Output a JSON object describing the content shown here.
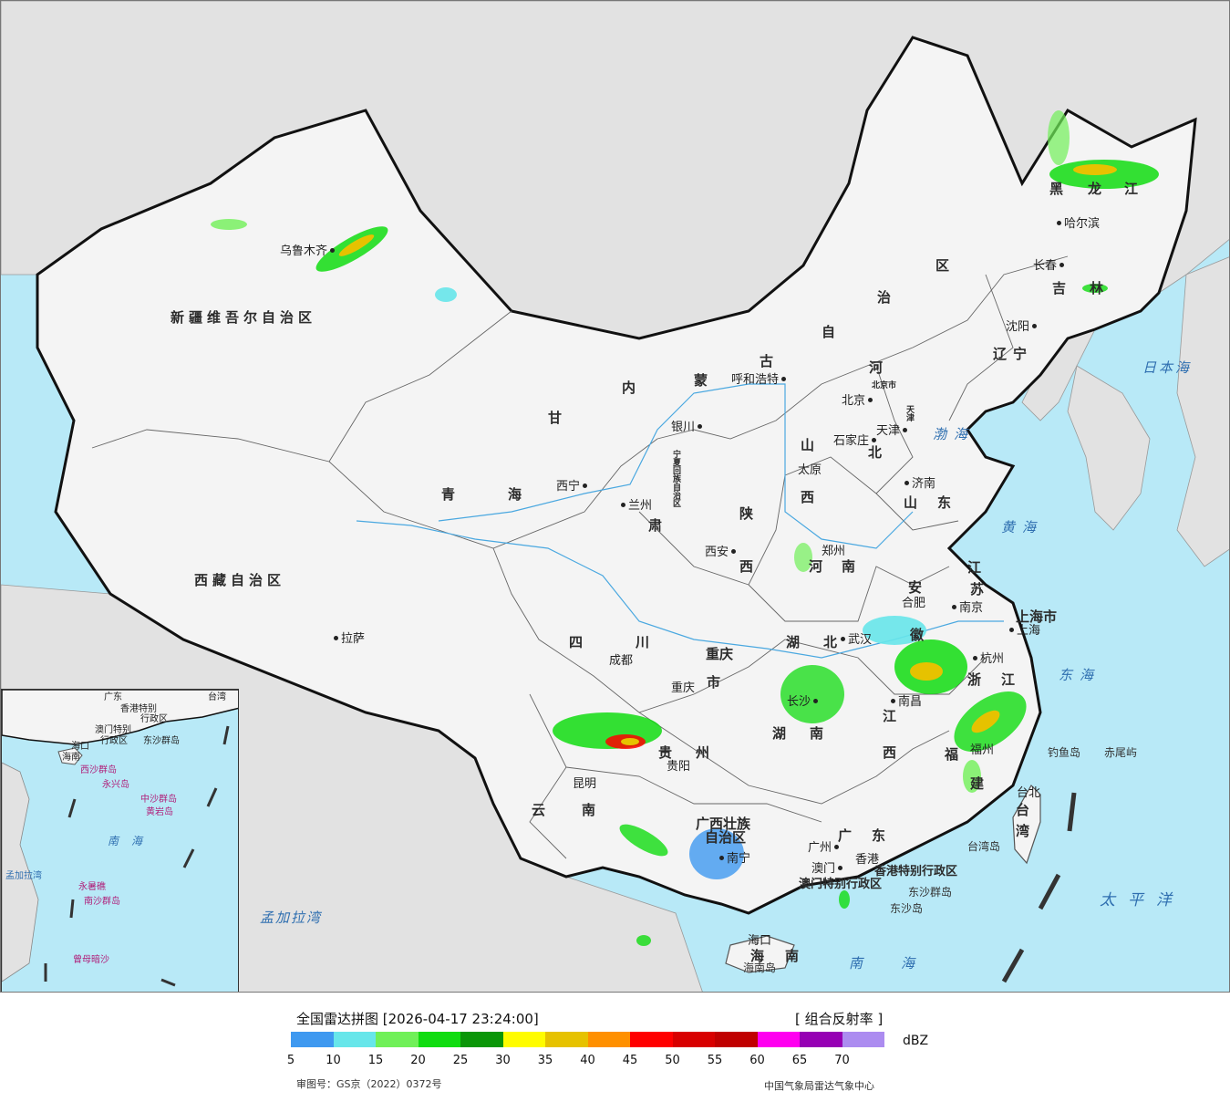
{
  "legend": {
    "title": "全国雷达拼图 [2026-04-17 23:24:00]",
    "product": "[ 组合反射率 ]",
    "unit": "dBZ",
    "ticks": [
      "5",
      "10",
      "15",
      "20",
      "25",
      "30",
      "35",
      "40",
      "45",
      "50",
      "55",
      "60",
      "65",
      "70"
    ],
    "colors": [
      "#3e99f0",
      "#67e6ea",
      "#70f058",
      "#10dc10",
      "#0a9608",
      "#fffc00",
      "#e6c200",
      "#ff9000",
      "#ff0000",
      "#d80000",
      "#c00000",
      "#ff00f0",
      "#9600b4",
      "#ac8cf0"
    ],
    "review_number": "审图号：GS京（2022）0372号",
    "provider": "中国气象局雷达气象中心"
  },
  "map": {
    "provinces": [
      {
        "name": "新疆维吾尔自治区"
      },
      {
        "name": "西藏自治区"
      },
      {
        "name": "青"
      },
      {
        "name": "海"
      },
      {
        "name": "甘"
      },
      {
        "name": "肃"
      },
      {
        "name": "内"
      },
      {
        "name": "蒙"
      },
      {
        "name": "古"
      },
      {
        "name": "自"
      },
      {
        "name": "治"
      },
      {
        "name": "区"
      },
      {
        "name": "黑"
      },
      {
        "name": "龙"
      },
      {
        "name": "江"
      },
      {
        "name": "吉"
      },
      {
        "name": "林"
      },
      {
        "name": "辽"
      },
      {
        "name": "宁"
      },
      {
        "name": "河"
      },
      {
        "name": "北"
      },
      {
        "name": "山"
      },
      {
        "name": "西"
      },
      {
        "name": "陕"
      },
      {
        "name": "西"
      },
      {
        "name": "山"
      },
      {
        "name": "东"
      },
      {
        "name": "河"
      },
      {
        "name": "南"
      },
      {
        "name": "江"
      },
      {
        "name": "苏"
      },
      {
        "name": "安"
      },
      {
        "name": "徽"
      },
      {
        "name": "上海市"
      },
      {
        "name": "浙"
      },
      {
        "name": "江"
      },
      {
        "name": "湖"
      },
      {
        "name": "北"
      },
      {
        "name": "湖"
      },
      {
        "name": "南"
      },
      {
        "name": "江"
      },
      {
        "name": "西"
      },
      {
        "name": "福"
      },
      {
        "name": "建"
      },
      {
        "name": "四"
      },
      {
        "name": "川"
      },
      {
        "name": "重庆"
      },
      {
        "name": "市"
      },
      {
        "name": "贵"
      },
      {
        "name": "州"
      },
      {
        "name": "云"
      },
      {
        "name": "南"
      },
      {
        "name": "广西壮族"
      },
      {
        "name": "自治区"
      },
      {
        "name": "广"
      },
      {
        "name": "东"
      },
      {
        "name": "海"
      },
      {
        "name": "南"
      },
      {
        "name": "台"
      },
      {
        "name": "湾"
      },
      {
        "name": "香港特别行政区"
      },
      {
        "name": "澳门特别行政区"
      },
      {
        "name": "宁夏回族自治区"
      },
      {
        "name": "北京市"
      },
      {
        "name": "天津"
      }
    ],
    "cities": [
      {
        "name": "乌鲁木齐"
      },
      {
        "name": "拉萨"
      },
      {
        "name": "西宁"
      },
      {
        "name": "兰州"
      },
      {
        "name": "银川"
      },
      {
        "name": "呼和浩特"
      },
      {
        "name": "哈尔滨"
      },
      {
        "name": "长春"
      },
      {
        "name": "沈阳"
      },
      {
        "name": "北京"
      },
      {
        "name": "天津"
      },
      {
        "name": "石家庄"
      },
      {
        "name": "太原"
      },
      {
        "name": "济南"
      },
      {
        "name": "郑州"
      },
      {
        "name": "西安"
      },
      {
        "name": "合肥"
      },
      {
        "name": "南京"
      },
      {
        "name": "上海"
      },
      {
        "name": "杭州"
      },
      {
        "name": "武汉"
      },
      {
        "name": "长沙"
      },
      {
        "name": "南昌"
      },
      {
        "name": "福州"
      },
      {
        "name": "台北"
      },
      {
        "name": "成都"
      },
      {
        "name": "重庆"
      },
      {
        "name": "贵阳"
      },
      {
        "name": "昆明"
      },
      {
        "name": "南宁"
      },
      {
        "name": "广州"
      },
      {
        "name": "香港"
      },
      {
        "name": "澳门"
      },
      {
        "name": "海口"
      }
    ],
    "seas": [
      {
        "name": "日本海"
      },
      {
        "name": "渤海"
      },
      {
        "name": "黄海"
      },
      {
        "name": "东海"
      },
      {
        "name": "太平洋"
      },
      {
        "name": "南海"
      },
      {
        "name": "孟加拉湾"
      }
    ],
    "islands": [
      {
        "name": "钓鱼岛"
      },
      {
        "name": "赤尾屿"
      },
      {
        "name": "台湾岛"
      },
      {
        "name": "东沙群岛"
      },
      {
        "name": "东沙岛"
      },
      {
        "name": "海南岛"
      }
    ]
  },
  "inset": {
    "labels": [
      {
        "name": "台湾"
      },
      {
        "name": "广东"
      },
      {
        "name": "香港特别"
      },
      {
        "name": "行政区"
      },
      {
        "name": "澳门特别"
      },
      {
        "name": "行政区"
      },
      {
        "name": "东沙群岛"
      },
      {
        "name": "海口"
      },
      {
        "name": "海南"
      },
      {
        "name": "西沙群岛"
      },
      {
        "name": "永兴岛"
      },
      {
        "name": "中沙群岛"
      },
      {
        "name": "黄岩岛"
      },
      {
        "name": "南海"
      },
      {
        "name": "南沙群岛"
      },
      {
        "name": "永暑礁"
      },
      {
        "name": "曾母暗沙"
      },
      {
        "name": "孟加拉湾"
      }
    ]
  }
}
